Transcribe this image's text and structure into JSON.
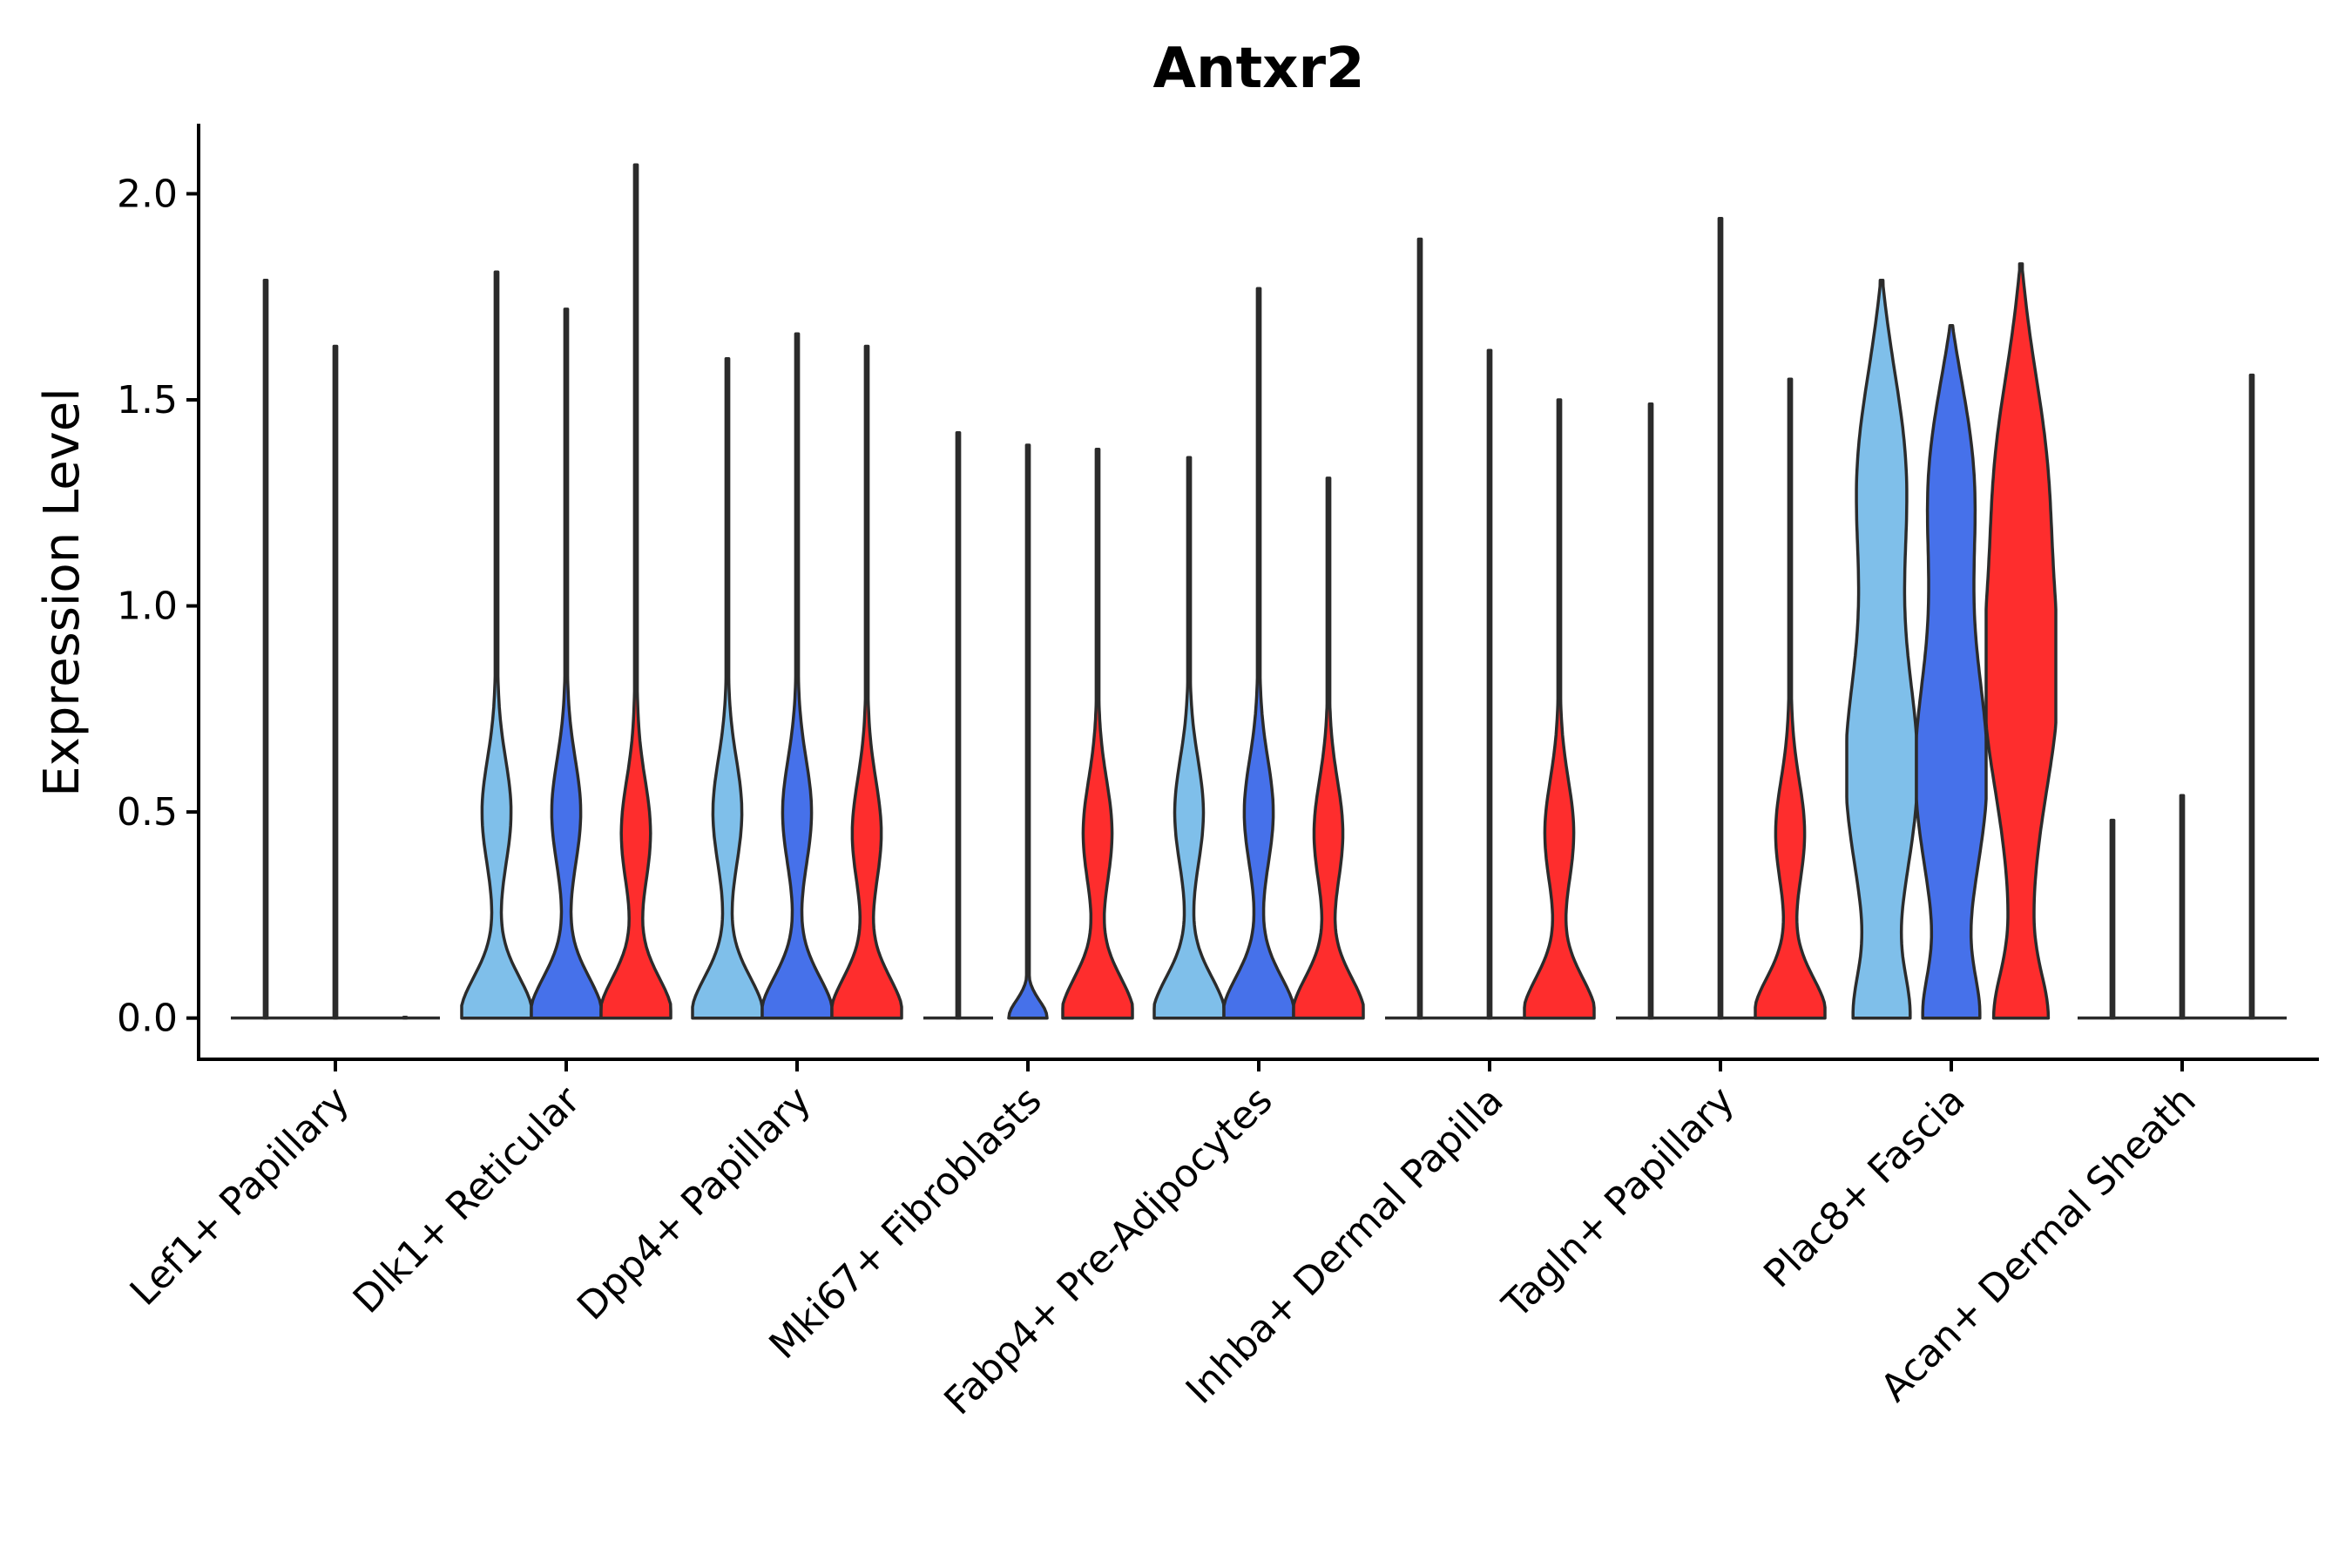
{
  "chart_data": {
    "type": "violin",
    "title": "Antxr2",
    "xlabel": "",
    "ylabel": "Expression Level",
    "ylim": [
      -0.1,
      2.17
    ],
    "yticks": [
      0.0,
      0.5,
      1.0,
      1.5,
      2.0
    ],
    "ytick_labels": [
      "0.0",
      "0.5",
      "1.0",
      "1.5",
      "2.0"
    ],
    "categories": [
      "Lef1+ Papillary",
      "Dlk1+ Reticular",
      "Dpp4+ Papillary",
      "Mki67+ Fibroblasts",
      "Fabp4+ Pre-Adipocytes",
      "Inhba+ Dermal Papilla",
      "Tagln+ Papillary",
      "Plac8+ Fascia",
      "Acan+ Dermal Sheath"
    ],
    "series": [
      {
        "name": "light blue",
        "color": "#7fbfea"
      },
      {
        "name": "blue",
        "color": "#4671ea"
      },
      {
        "name": "red",
        "color": "#fe2d2d"
      }
    ],
    "violins": [
      {
        "category": 0,
        "series": 0,
        "max": 1.79,
        "shape": "flat"
      },
      {
        "category": 0,
        "series": 1,
        "max": 1.63,
        "shape": "flat"
      },
      {
        "category": 0,
        "series": 2,
        "max": 0.0,
        "shape": "flat"
      },
      {
        "category": 1,
        "series": 0,
        "max": 1.81,
        "shape": "bump"
      },
      {
        "category": 1,
        "series": 1,
        "max": 1.72,
        "shape": "bump"
      },
      {
        "category": 1,
        "series": 2,
        "max": 2.07,
        "shape": "bump"
      },
      {
        "category": 2,
        "series": 0,
        "max": 1.6,
        "shape": "bump"
      },
      {
        "category": 2,
        "series": 1,
        "max": 1.66,
        "shape": "bump"
      },
      {
        "category": 2,
        "series": 2,
        "max": 1.63,
        "shape": "bump"
      },
      {
        "category": 3,
        "series": 0,
        "max": 1.42,
        "shape": "flat"
      },
      {
        "category": 3,
        "series": 1,
        "max": 1.39,
        "shape": "small"
      },
      {
        "category": 3,
        "series": 2,
        "max": 1.38,
        "shape": "bump"
      },
      {
        "category": 4,
        "series": 0,
        "max": 1.36,
        "shape": "bump"
      },
      {
        "category": 4,
        "series": 1,
        "max": 1.77,
        "shape": "bump"
      },
      {
        "category": 4,
        "series": 2,
        "max": 1.31,
        "shape": "bump"
      },
      {
        "category": 5,
        "series": 0,
        "max": 1.89,
        "shape": "flat"
      },
      {
        "category": 5,
        "series": 1,
        "max": 1.62,
        "shape": "flat"
      },
      {
        "category": 5,
        "series": 2,
        "max": 1.5,
        "shape": "bump"
      },
      {
        "category": 6,
        "series": 0,
        "max": 1.49,
        "shape": "flat"
      },
      {
        "category": 6,
        "series": 1,
        "max": 1.94,
        "shape": "flat"
      },
      {
        "category": 6,
        "series": 2,
        "max": 1.55,
        "shape": "bump"
      },
      {
        "category": 7,
        "series": 0,
        "max": 1.79,
        "shape": "wide"
      },
      {
        "category": 7,
        "series": 1,
        "max": 1.68,
        "shape": "wide"
      },
      {
        "category": 7,
        "series": 2,
        "max": 1.83,
        "shape": "wide"
      },
      {
        "category": 8,
        "series": 0,
        "max": 0.48,
        "shape": "flat"
      },
      {
        "category": 8,
        "series": 1,
        "max": 0.54,
        "shape": "flat"
      },
      {
        "category": 8,
        "series": 2,
        "max": 1.56,
        "shape": "flat"
      }
    ]
  }
}
